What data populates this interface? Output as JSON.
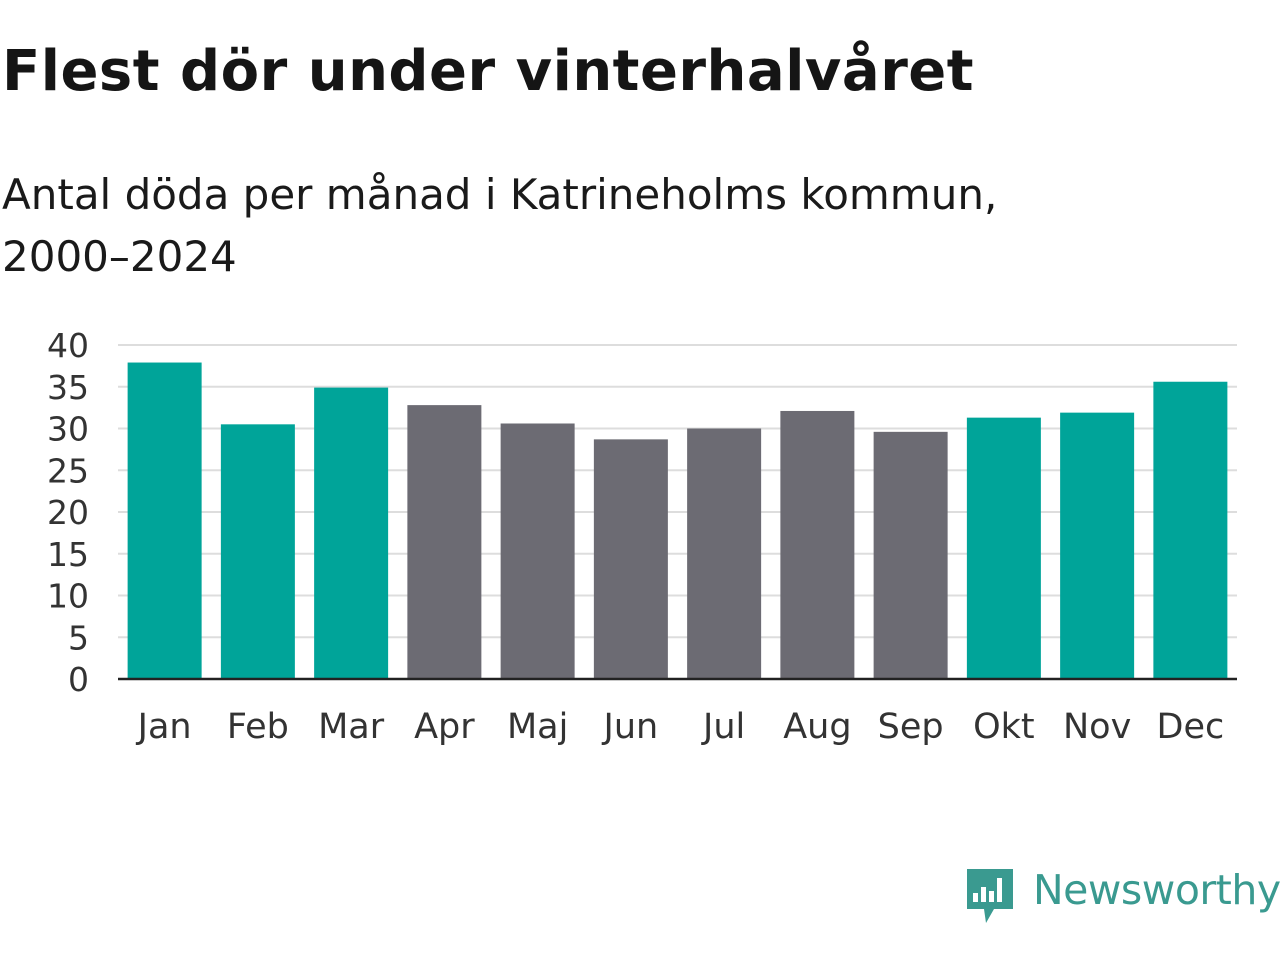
{
  "title": "Flest dör under vinterhalvåret",
  "subtitle_line1": "Antal döda per månad i Katrineholms kommun,",
  "subtitle_line2": "2000–2024",
  "colors": {
    "winter": "#00a499",
    "summer": "#6c6b73",
    "grid": "#dddddd",
    "axis": "#222222",
    "tick_text": "#333333",
    "brand": "#3a9a90"
  },
  "brand": {
    "name": "Newsworthy",
    "icon": "newsworthy-logo-icon"
  },
  "chart_data": {
    "type": "bar",
    "title": "Flest dör under vinterhalvåret",
    "subtitle": "Antal döda per månad i Katrineholms kommun, 2000–2024",
    "xlabel": "",
    "ylabel": "",
    "categories": [
      "Jan",
      "Feb",
      "Mar",
      "Apr",
      "Maj",
      "Jun",
      "Jul",
      "Aug",
      "Sep",
      "Okt",
      "Nov",
      "Dec"
    ],
    "values": [
      37.9,
      30.5,
      34.9,
      32.8,
      30.6,
      28.7,
      30.0,
      32.1,
      29.6,
      31.3,
      31.9,
      35.6
    ],
    "groups": [
      "winter",
      "winter",
      "winter",
      "summer",
      "summer",
      "summer",
      "summer",
      "summer",
      "summer",
      "winter",
      "winter",
      "winter"
    ],
    "ylim": [
      0,
      40
    ],
    "yticks": [
      0,
      5,
      10,
      15,
      20,
      25,
      30,
      35,
      40
    ],
    "grid": true,
    "legend": "none"
  }
}
